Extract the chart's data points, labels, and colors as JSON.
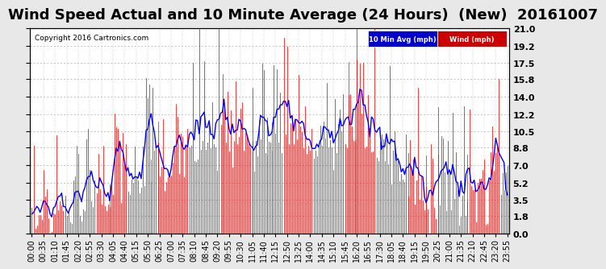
{
  "title": "Wind Speed Actual and 10 Minute Average (24 Hours)  (New)  20161007",
  "copyright": "Copyright 2016 Cartronics.com",
  "legend_labels": [
    "10 Min Avg (mph)",
    "Wind (mph)"
  ],
  "legend_bg_colors": [
    "#0000cc",
    "#cc0000"
  ],
  "yticks": [
    0.0,
    1.8,
    3.5,
    5.2,
    7.0,
    8.8,
    10.5,
    12.2,
    14.0,
    15.8,
    17.5,
    19.2,
    21.0
  ],
  "ymax": 21.0,
  "ymin": 0.0,
  "bg_color": "#e8e8e8",
  "plot_bg_color": "#ffffff",
  "grid_color": "#aaaaaa",
  "title_fontsize": 13,
  "tick_fontsize": 7,
  "wind_color": "#ff0000",
  "avg_color": "#0000ff",
  "spike_color": "#000000"
}
